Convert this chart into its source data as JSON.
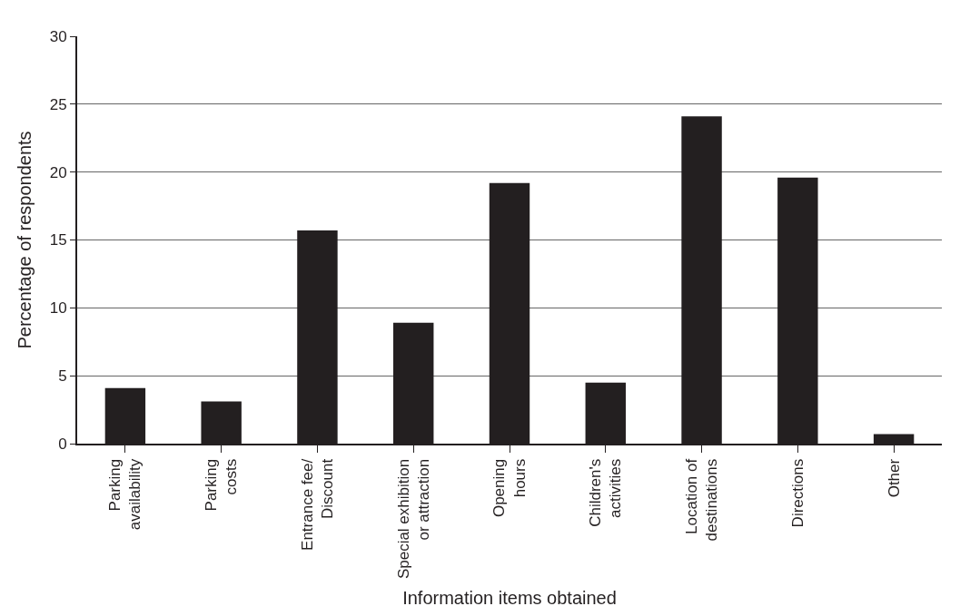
{
  "chart_data": {
    "type": "bar",
    "xlabel": "Information items obtained",
    "ylabel": "Percentage of respondents",
    "categories": [
      "Parking\navailability",
      "Parking\ncosts",
      "Entrance fee/\nDiscount",
      "Special exhibition\nor attraction",
      "Opening\nhours",
      "Children's\nactivities",
      "Location of\ndestinations",
      "Directions",
      "Other"
    ],
    "values": [
      4.1,
      3.1,
      15.7,
      8.9,
      19.2,
      4.5,
      24.1,
      19.6,
      0.7
    ],
    "color": "#231f20",
    "ylim": [
      0,
      30
    ],
    "yticks": [
      0,
      5,
      10,
      15,
      20,
      25,
      30
    ],
    "grid": "y"
  }
}
